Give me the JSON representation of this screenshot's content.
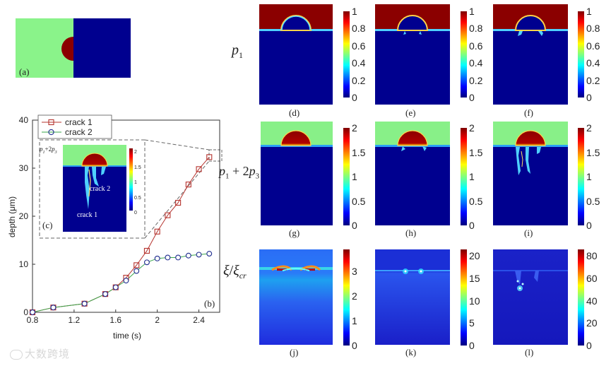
{
  "labels": {
    "a": "(a)",
    "b": "(b)",
    "c": "(c)",
    "d": "(d)",
    "e": "(e)",
    "f": "(f)",
    "g": "(g)",
    "h": "(h)",
    "i": "(i)",
    "j": "(j)",
    "k": "(k)",
    "l": "(l)"
  },
  "row_labels": {
    "p1_base": "p",
    "p1_sub": "1",
    "sum_base": "p",
    "sum_sub1": "1",
    "sum_mid": " + 2",
    "sum_base2": "p",
    "sum_sub2": "3",
    "xi_num": "ξ",
    "xi_sep": "/",
    "xi_den": "ξ",
    "xi_den_sub": "cr"
  },
  "inset": {
    "title_a": "p",
    "title_sub1": "1",
    "title_mid": "+2",
    "title_b": "p",
    "title_sub2": "3",
    "crack1": "crack 1",
    "crack2": "crack 2",
    "ticks": [
      "2",
      "1.5",
      "1",
      "0.5",
      "0"
    ]
  },
  "colorbars": {
    "row1": [
      "1",
      "0.8",
      "0.6",
      "0.4",
      "0.2",
      "0"
    ],
    "row2": [
      "2",
      "1.5",
      "1",
      "0.5",
      "0"
    ],
    "j": [
      "3",
      "2",
      "1",
      "0"
    ],
    "k": [
      "20",
      "15",
      "10",
      "5",
      "0"
    ],
    "l": [
      "80",
      "60",
      "40",
      "20",
      "0"
    ]
  },
  "watermark": "大数跨境",
  "colors": {
    "red_series": "#b5332e",
    "blue_series": "#1f2d8f",
    "green_line": "#3aa64b",
    "dark_red": "#8b0000",
    "green": "#88f088",
    "navy": "#00008f"
  },
  "chart_data": {
    "type": "line",
    "xlabel": "time (s)",
    "ylabel": "depth (μm)",
    "xlim": [
      0.8,
      2.6
    ],
    "ylim": [
      0,
      40
    ],
    "xticks": [
      "0.8",
      "1.2",
      "1.6",
      "2",
      "2.4"
    ],
    "yticks": [
      "0",
      "10",
      "20",
      "30",
      "40"
    ],
    "legend_position": "top-left",
    "series": [
      {
        "name": "crack 1",
        "marker": "square",
        "x": [
          0.8,
          1.0,
          1.3,
          1.5,
          1.6,
          1.7,
          1.8,
          1.9,
          2.0,
          2.1,
          2.2,
          2.3,
          2.4,
          2.5
        ],
        "y": [
          0,
          1.0,
          1.8,
          3.8,
          5.2,
          7.2,
          9.8,
          12.8,
          16.8,
          20.2,
          22.8,
          26.6,
          29.8,
          32.3
        ]
      },
      {
        "name": "crack 2",
        "marker": "circle",
        "x": [
          0.8,
          1.0,
          1.3,
          1.5,
          1.6,
          1.7,
          1.8,
          1.9,
          2.0,
          2.1,
          2.2,
          2.3,
          2.4,
          2.5
        ],
        "y": [
          0,
          1.0,
          1.8,
          3.8,
          5.2,
          6.6,
          8.6,
          10.4,
          11.2,
          11.4,
          11.4,
          11.8,
          12.0,
          12.2
        ]
      }
    ]
  }
}
